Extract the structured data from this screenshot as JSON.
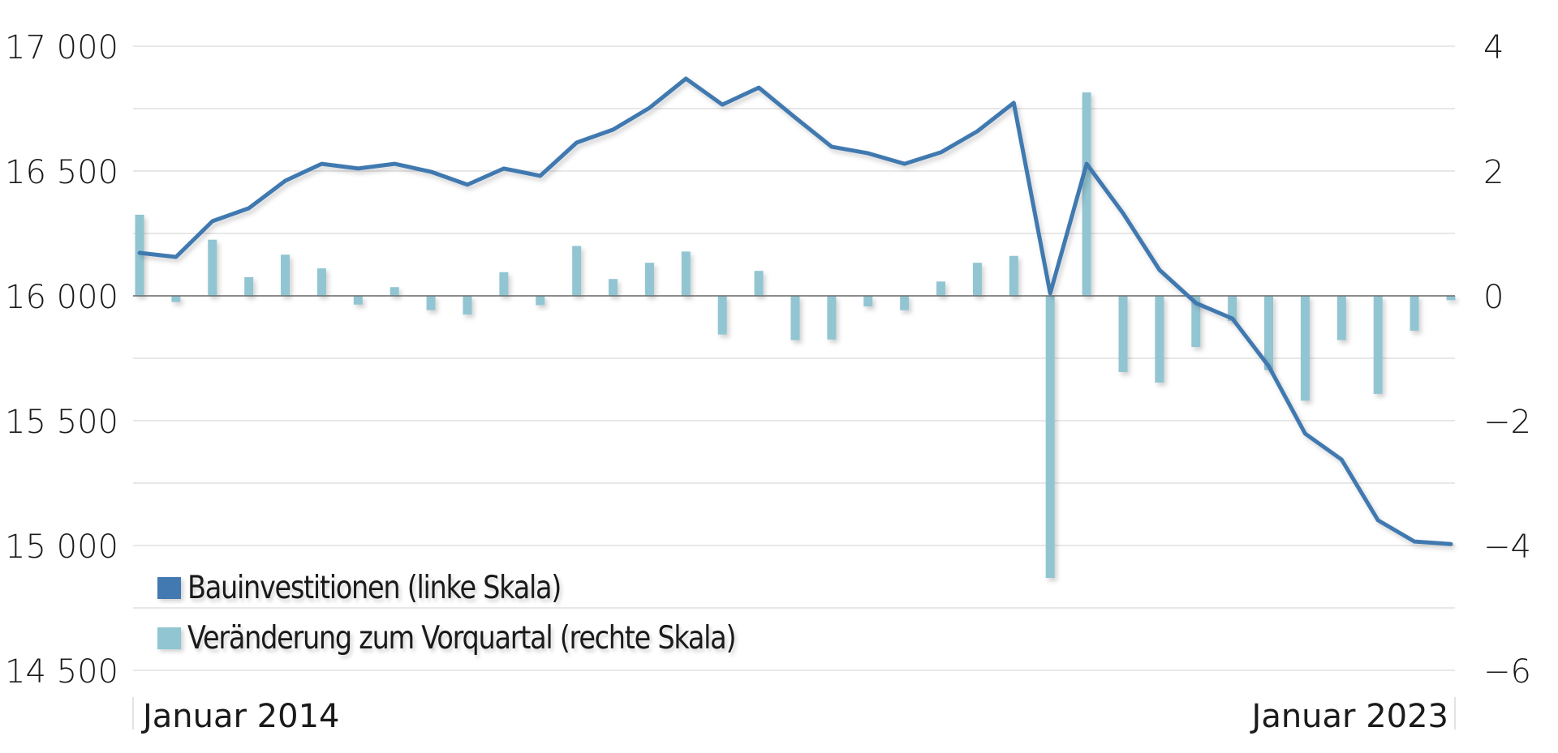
{
  "chart_data": {
    "type": "bar+line",
    "title": "",
    "x": [
      "2014Q1",
      "2014Q2",
      "2014Q3",
      "2014Q4",
      "2015Q1",
      "2015Q2",
      "2015Q3",
      "2015Q4",
      "2016Q1",
      "2016Q2",
      "2016Q3",
      "2016Q4",
      "2017Q1",
      "2017Q2",
      "2017Q3",
      "2017Q4",
      "2018Q1",
      "2018Q2",
      "2018Q3",
      "2018Q4",
      "2019Q1",
      "2019Q2",
      "2019Q3",
      "2019Q4",
      "2020Q1",
      "2020Q2",
      "2020Q3",
      "2020Q4",
      "2021Q1",
      "2021Q2",
      "2021Q3",
      "2021Q4",
      "2022Q1",
      "2022Q2",
      "2022Q3",
      "2022Q4",
      "2023Q1"
    ],
    "x_tick_labels": [
      {
        "index": 0,
        "label": "Januar 2014"
      },
      {
        "index": 36,
        "label": "Januar 2023"
      }
    ],
    "series": [
      {
        "name": "Bauinvestitionen (linke Skala)",
        "type": "line",
        "axis": "left",
        "color": "#4179b0",
        "values": [
          16172,
          16156,
          16299,
          16351,
          16461,
          16529,
          16510,
          16529,
          16497,
          16445,
          16510,
          16481,
          16614,
          16666,
          16753,
          16870,
          16766,
          16834,
          16714,
          16597,
          16571,
          16529,
          16575,
          16659,
          16773,
          16010,
          16529,
          16331,
          16104,
          15971,
          15909,
          15718,
          15448,
          15344,
          15101,
          15016,
          15006
        ]
      },
      {
        "name": "Veränderung zum Vorquartal (rechte Skala)",
        "type": "bar",
        "axis": "right",
        "color": "#92c5d2",
        "values": [
          1.3,
          -0.1,
          0.9,
          0.3,
          0.66,
          0.44,
          -0.14,
          0.14,
          -0.23,
          -0.3,
          0.38,
          -0.15,
          0.8,
          0.27,
          0.53,
          0.71,
          -0.62,
          0.4,
          -0.71,
          -0.7,
          -0.17,
          -0.23,
          0.23,
          0.53,
          0.64,
          -4.52,
          3.26,
          -1.22,
          -1.39,
          -0.82,
          -0.4,
          -1.19,
          -1.68,
          -0.71,
          -1.57,
          -0.56,
          -0.07
        ]
      }
    ],
    "left_axis": {
      "ylim": [
        14500,
        17000
      ],
      "ticks": [
        17000,
        16500,
        16000,
        15500,
        15000,
        14500
      ],
      "tick_labels": [
        "17 000",
        "16 500",
        "16 000",
        "15 500",
        "15 000",
        "14 500"
      ]
    },
    "right_axis": {
      "ylim": [
        -6,
        4
      ],
      "ticks": [
        4,
        2,
        0,
        -2,
        -4,
        -6
      ],
      "tick_labels": [
        "4",
        "2",
        "0",
        "−2",
        "−4",
        "−6"
      ]
    },
    "grid": true,
    "grid_step_left": 250,
    "legend_position": "lower-left inside",
    "xlabel": "",
    "ylabel": ""
  },
  "legend": {
    "items": [
      {
        "label": "Bauinvestitionen (linke Skala)",
        "color": "#4179b0"
      },
      {
        "label": "Veränderung zum Vorquartal (rechte Skala)",
        "color": "#92c5d2"
      }
    ]
  },
  "colors": {
    "line": "#4179b0",
    "bar": "#92c5d2",
    "grid": "#e8e8e8",
    "zero_line": "#6e6e6e",
    "text": "#1a1a1a"
  }
}
